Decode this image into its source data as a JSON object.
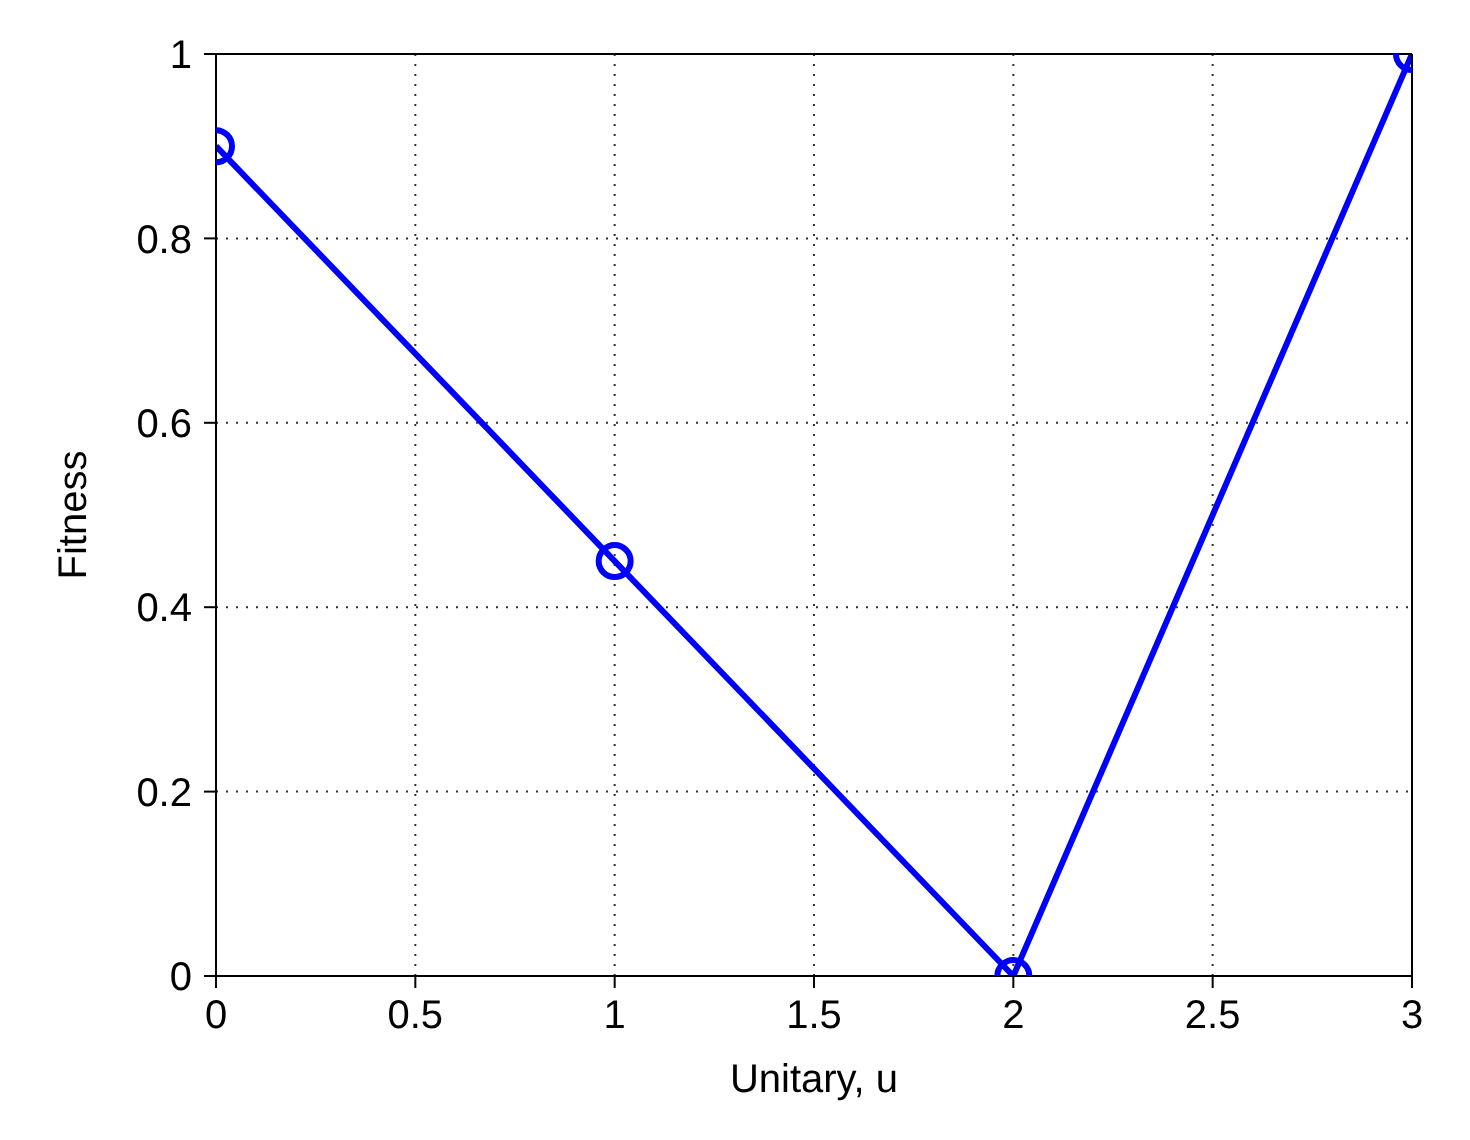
{
  "chart_data": {
    "type": "line",
    "xlabel": "Unitary, u",
    "ylabel": "Fitness",
    "x": [
      0,
      1,
      2,
      3
    ],
    "series": [
      {
        "color": "#0000ff",
        "values": [
          0.9,
          0.45,
          0,
          1
        ]
      }
    ],
    "xlim": [
      0,
      3
    ],
    "xticks": [
      0,
      0.5,
      1,
      1.5,
      2,
      2.5,
      3
    ],
    "ylim": [
      0,
      1
    ],
    "yticks": [
      0,
      0.2,
      0.4,
      0.6,
      0.8,
      1
    ],
    "grid": true,
    "marker": "circle",
    "line_style": "solid"
  }
}
